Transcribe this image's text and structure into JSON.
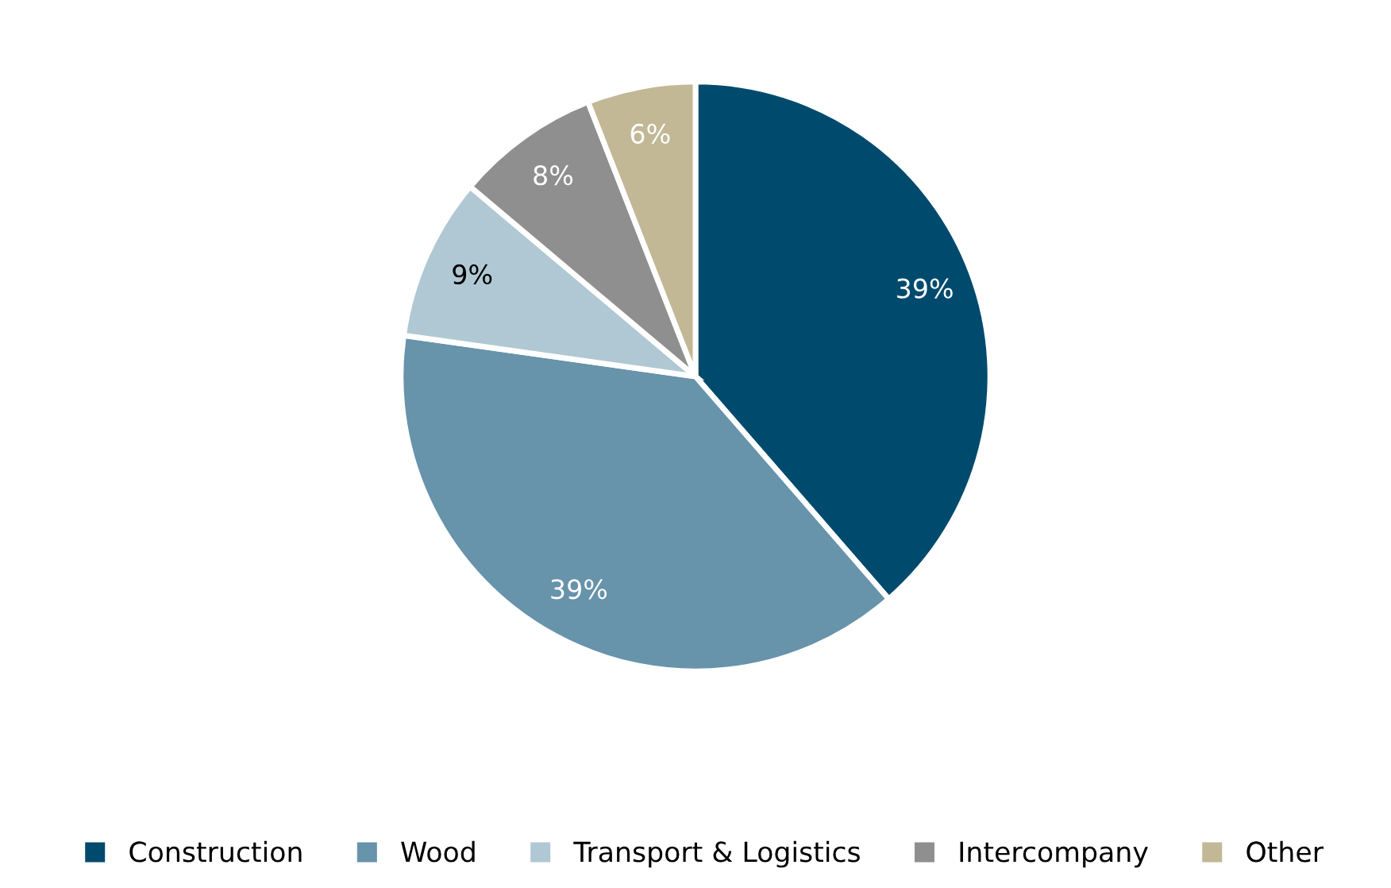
{
  "chart_data": {
    "type": "pie",
    "categories": [
      "Construction",
      "Wood",
      "Transport & Logistics",
      "Intercompany",
      "Other"
    ],
    "values": [
      39,
      39,
      9,
      8,
      6
    ],
    "colors": [
      "#004a6e",
      "#6793ab",
      "#b0c8d3",
      "#8f8f8f",
      "#c2b896"
    ],
    "value_labels": [
      "39%",
      "39%",
      "9%",
      "8%",
      "6%"
    ],
    "legend": "bottom"
  }
}
